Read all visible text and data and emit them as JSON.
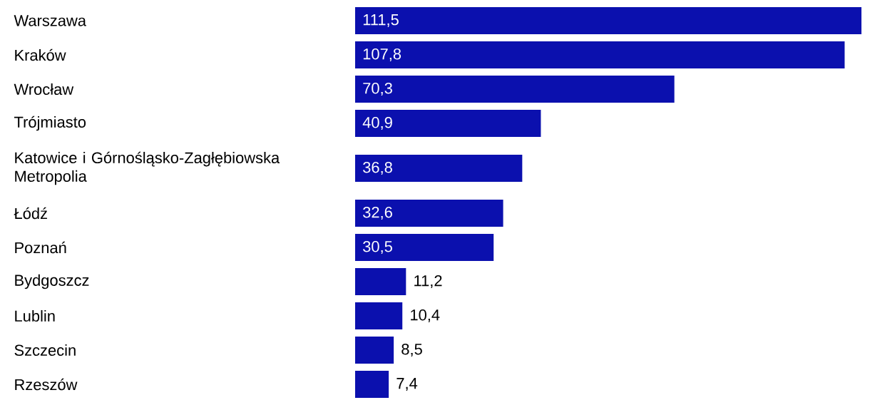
{
  "chart_data": {
    "type": "bar",
    "orientation": "horizontal",
    "categories": [
      "Warszawa",
      "Kraków",
      "Wrocław",
      "Trójmiasto",
      "Katowice i Górnośląsko-Zagłębiowska Metropolia",
      "Łódź",
      "Poznań",
      "Bydgoszcz",
      "Lublin",
      "Szczecin",
      "Rzeszów"
    ],
    "values": [
      111.5,
      107.8,
      70.3,
      40.9,
      36.8,
      32.6,
      30.5,
      11.2,
      10.4,
      8.5,
      7.4
    ],
    "value_labels": [
      "111,5",
      "107,8",
      "70,3",
      "40,9",
      "36,8",
      "32,6",
      "30,5",
      "11,2",
      "10,4",
      "8,5",
      "7,4"
    ],
    "color": "#0b10ae"
  }
}
